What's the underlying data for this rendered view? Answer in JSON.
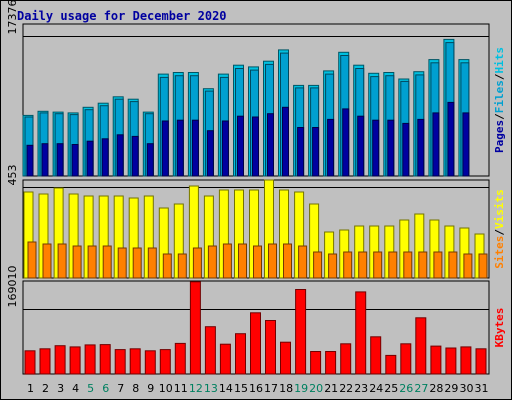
{
  "chart_data": {
    "type": "bar",
    "title": "Daily usage for December 2020",
    "colors": {
      "title": "#0000a0",
      "hits": "#00c0e0",
      "files": "#00a0d0",
      "pages": "#0000a0",
      "visits": "#ffff00",
      "sites": "#ff8000",
      "kbytes": "#ff0000",
      "weekend": "#008060",
      "weekday": "#000000",
      "slash": "#000000"
    },
    "days": [
      "1",
      "2",
      "3",
      "4",
      "5",
      "6",
      "7",
      "8",
      "9",
      "10",
      "11",
      "12",
      "13",
      "14",
      "15",
      "16",
      "17",
      "18",
      "19",
      "20",
      "21",
      "22",
      "23",
      "24",
      "25",
      "26",
      "27",
      "28",
      "29",
      "30",
      "31"
    ],
    "weekend_days": [
      "5",
      "6",
      "12",
      "13",
      "19",
      "20",
      "26",
      "27"
    ],
    "panels": [
      {
        "id": "requests",
        "tick_label": "17376",
        "tick_value": 17376,
        "ymax": 18800,
        "legend": [
          "Pages",
          "/",
          "Files",
          "/",
          "Hits"
        ],
        "series": [
          {
            "name": "Hits",
            "values": [
              7500,
              8000,
              7900,
              7800,
              8500,
              9000,
              9800,
              9500,
              7900,
              12600,
              12800,
              12800,
              10800,
              12600,
              13700,
              13500,
              14200,
              15600,
              11200,
              11200,
              13000,
              15300,
              13700,
              12700,
              12800,
              12000,
              12900,
              14400,
              16900,
              14400,
              null
            ]
          },
          {
            "name": "Files",
            "values": [
              7300,
              7800,
              7700,
              7600,
              8200,
              8700,
              9500,
              9200,
              7700,
              12200,
              12400,
              12400,
              10500,
              12200,
              13300,
              13100,
              13800,
              15200,
              10900,
              10900,
              12600,
              14900,
              13300,
              12300,
              12400,
              11700,
              12500,
              14000,
              16500,
              14000,
              null
            ]
          },
          {
            "name": "Pages",
            "values": [
              3800,
              4000,
              4000,
              3900,
              4300,
              4600,
              5100,
              4900,
              4000,
              6800,
              6900,
              6900,
              5600,
              6800,
              7400,
              7300,
              7700,
              8500,
              6000,
              6000,
              7000,
              8300,
              7400,
              6900,
              6900,
              6500,
              7000,
              7800,
              9100,
              7800,
              null
            ]
          }
        ]
      },
      {
        "id": "visits",
        "tick_label": "453",
        "tick_value": 453,
        "ymax": 490,
        "legend": [
          "Sites",
          "/",
          "Visits"
        ],
        "series": [
          {
            "name": "Visits",
            "values": [
              430,
              420,
              450,
              420,
              410,
              410,
              410,
              400,
              410,
              350,
              370,
              460,
              410,
              440,
              440,
              440,
              490,
              440,
              430,
              370,
              230,
              240,
              260,
              260,
              260,
              290,
              320,
              290,
              260,
              250,
              220
            ]
          },
          {
            "name": "Sites",
            "values": [
              180,
              170,
              170,
              160,
              160,
              160,
              150,
              150,
              150,
              120,
              120,
              150,
              160,
              170,
              170,
              160,
              170,
              170,
              160,
              130,
              120,
              130,
              130,
              130,
              130,
              130,
              130,
              130,
              130,
              120,
              120
            ]
          }
        ]
      },
      {
        "id": "kbytes",
        "tick_label": "169010",
        "tick_value": 169010,
        "ymax": 240000,
        "legend": [
          "KBytes"
        ],
        "series": [
          {
            "name": "KBytes",
            "values": [
              60000,
              65000,
              73000,
              70000,
              75000,
              76000,
              63000,
              65000,
              60000,
              63000,
              79000,
              238000,
              122000,
              77000,
              104000,
              158000,
              138000,
              82000,
              218000,
              58000,
              58000,
              78000,
              212000,
              96000,
              48000,
              78000,
              145000,
              72000,
              67000,
              70000,
              65000
            ]
          }
        ]
      }
    ]
  }
}
